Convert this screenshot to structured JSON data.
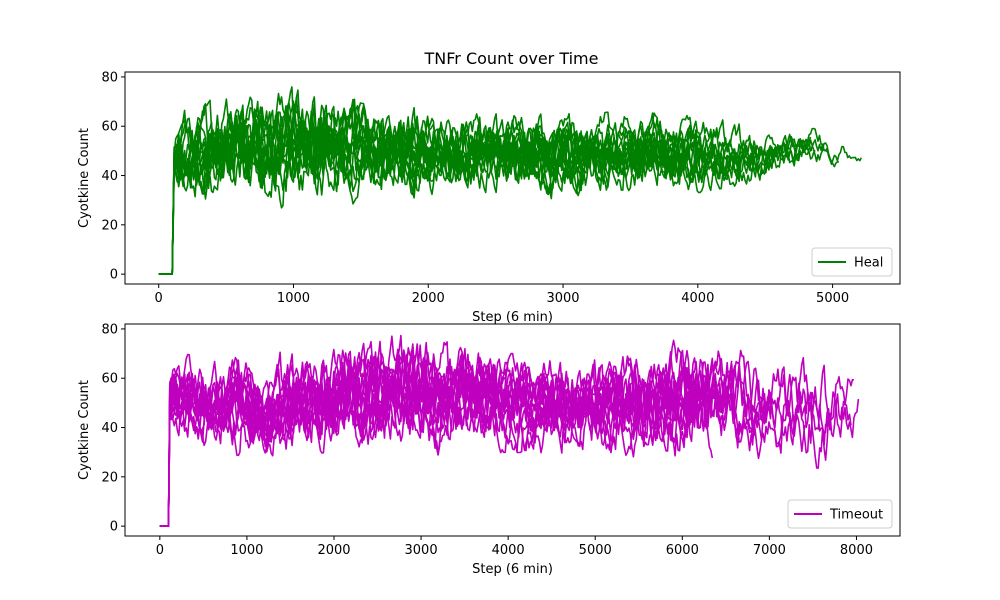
{
  "figure": {
    "title": "TNFr Count over Time"
  },
  "chart_data": [
    {
      "type": "line",
      "title": "TNFr Count over Time",
      "xlabel": "Step (6 min)",
      "ylabel": "Cyotkine Count",
      "xlim": [
        -250,
        5500
      ],
      "ylim": [
        -4,
        82
      ],
      "xticks": [
        0,
        1000,
        2000,
        3000,
        4000,
        5000
      ],
      "yticks": [
        0,
        20,
        40,
        60,
        80
      ],
      "grid": false,
      "legend": "lower-right",
      "series": [
        {
          "name": "Heal",
          "color": "#008000",
          "initial_zero_until": 100,
          "x_end": 5250,
          "envelope": [
            {
              "x": 100,
              "min": 0,
              "max": 0
            },
            {
              "x": 130,
              "min": 30,
              "max": 66
            },
            {
              "x": 500,
              "min": 27,
              "max": 73
            },
            {
              "x": 1000,
              "min": 25,
              "max": 76
            },
            {
              "x": 1500,
              "min": 29,
              "max": 72
            },
            {
              "x": 2000,
              "min": 31,
              "max": 67
            },
            {
              "x": 2500,
              "min": 32,
              "max": 66
            },
            {
              "x": 3000,
              "min": 30,
              "max": 65
            },
            {
              "x": 3500,
              "min": 34,
              "max": 66
            },
            {
              "x": 4000,
              "min": 33,
              "max": 64
            },
            {
              "x": 4500,
              "min": 38,
              "max": 60
            },
            {
              "x": 5000,
              "min": 43,
              "max": 59
            },
            {
              "x": 5250,
              "min": 44,
              "max": 50
            }
          ]
        }
      ]
    },
    {
      "type": "line",
      "xlabel": "Step (6 min)",
      "ylabel": "Cyotkine Count",
      "xlim": [
        -400,
        8500
      ],
      "ylim": [
        -4,
        82
      ],
      "xticks": [
        0,
        1000,
        2000,
        3000,
        4000,
        5000,
        6000,
        7000,
        8000
      ],
      "yticks": [
        0,
        20,
        40,
        60,
        80
      ],
      "grid": false,
      "legend": "lower-right",
      "series": [
        {
          "name": "Timeout",
          "color": "#bf00bf",
          "initial_zero_until": 100,
          "x_end": 8100,
          "envelope": [
            {
              "x": 100,
              "min": 0,
              "max": 0
            },
            {
              "x": 150,
              "min": 34,
              "max": 70
            },
            {
              "x": 1000,
              "min": 28,
              "max": 68
            },
            {
              "x": 2000,
              "min": 30,
              "max": 77
            },
            {
              "x": 3000,
              "min": 28,
              "max": 79
            },
            {
              "x": 4000,
              "min": 30,
              "max": 70
            },
            {
              "x": 5000,
              "min": 29,
              "max": 70
            },
            {
              "x": 6000,
              "min": 27,
              "max": 76
            },
            {
              "x": 7000,
              "min": 27,
              "max": 70
            },
            {
              "x": 7800,
              "min": 22,
              "max": 70
            },
            {
              "x": 8100,
              "min": 34,
              "max": 70
            }
          ]
        }
      ]
    }
  ]
}
